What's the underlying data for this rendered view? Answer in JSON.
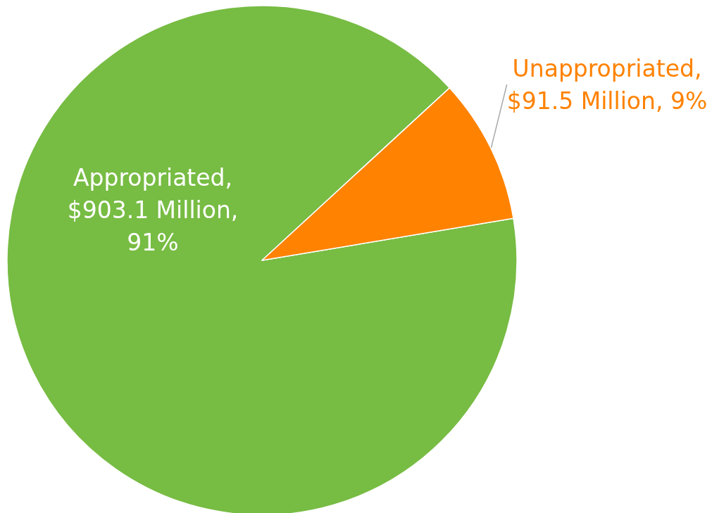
{
  "chart_data": {
    "type": "pie",
    "categories": [
      "Appropriated",
      "Unappropriated"
    ],
    "values": [
      903.1,
      91.5
    ],
    "colors": [
      "#77bc43",
      "#ff8200"
    ],
    "value_labels": [
      ",\n$903.1 Million,\n91%",
      ",\n$91.5 Million, 9%"
    ]
  }
}
